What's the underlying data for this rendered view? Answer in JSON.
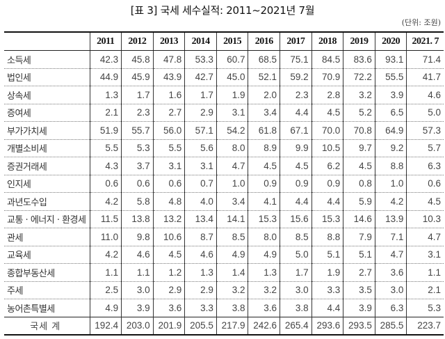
{
  "document": {
    "title": "[표 3] 국세 세수실적: 2011~2021년 7월",
    "unit": "(단위: 조원)"
  },
  "table": {
    "header": {
      "label": "",
      "years": [
        "2011",
        "2012",
        "2013",
        "2014",
        "2015",
        "2016",
        "2017",
        "2018",
        "2019",
        "2020",
        "2021. 7"
      ]
    },
    "rows": [
      {
        "label": "소득세",
        "values": [
          "42.3",
          "45.8",
          "47.8",
          "53.3",
          "60.7",
          "68.5",
          "75.1",
          "84.5",
          "83.6",
          "93.1",
          "71.4"
        ]
      },
      {
        "label": "법인세",
        "values": [
          "44.9",
          "45.9",
          "43.9",
          "42.7",
          "45.0",
          "52.1",
          "59.2",
          "70.9",
          "72.2",
          "55.5",
          "41.7"
        ]
      },
      {
        "label": "상속세",
        "values": [
          "1.3",
          "1.7",
          "1.6",
          "1.7",
          "1.9",
          "2.0",
          "2.3",
          "2.8",
          "3.2",
          "3.9",
          "4.6"
        ]
      },
      {
        "label": "증여세",
        "values": [
          "2.1",
          "2.3",
          "2.7",
          "2.9",
          "3.1",
          "3.4",
          "4.4",
          "4.5",
          "5.2",
          "6.5",
          "5.0"
        ]
      },
      {
        "label": "부가가치세",
        "values": [
          "51.9",
          "55.7",
          "56.0",
          "57.1",
          "54.2",
          "61.8",
          "67.1",
          "70.0",
          "70.8",
          "64.9",
          "57.3"
        ]
      },
      {
        "label": "개별소비세",
        "values": [
          "5.5",
          "5.3",
          "5.5",
          "5.6",
          "8.0",
          "8.9",
          "9.9",
          "10.5",
          "9.7",
          "9.2",
          "5.7"
        ]
      },
      {
        "label": "증권거래세",
        "values": [
          "4.3",
          "3.7",
          "3.1",
          "3.1",
          "4.7",
          "4.5",
          "4.5",
          "6.2",
          "4.5",
          "8.8",
          "6.3"
        ]
      },
      {
        "label": "인지세",
        "values": [
          "0.6",
          "0.6",
          "0.6",
          "0.7",
          "1.0",
          "0.9",
          "0.9",
          "0.9",
          "0.8",
          "1.0",
          "0.6"
        ]
      },
      {
        "label": "과년도수입",
        "values": [
          "4.2",
          "5.8",
          "4.8",
          "4.0",
          "3.4",
          "4.1",
          "4.4",
          "4.4",
          "5.9",
          "4.2",
          "4.5"
        ]
      },
      {
        "label": "교통 · 에너지 · 환경세",
        "values": [
          "11.5",
          "13.8",
          "13.2",
          "13.4",
          "14.1",
          "15.3",
          "15.6",
          "15.3",
          "14.6",
          "13.9",
          "10.3"
        ]
      },
      {
        "label": "관세",
        "values": [
          "11.0",
          "9.8",
          "10.6",
          "8.7",
          "8.5",
          "8.0",
          "8.5",
          "8.8",
          "7.9",
          "7.1",
          "4.7"
        ]
      },
      {
        "label": "교육세",
        "values": [
          "4.2",
          "4.6",
          "4.5",
          "4.6",
          "4.9",
          "4.9",
          "5.0",
          "5.1",
          "5.1",
          "4.7",
          "3.1"
        ]
      },
      {
        "label": "종합부동산세",
        "values": [
          "1.1",
          "1.1",
          "1.2",
          "1.3",
          "1.4",
          "1.3",
          "1.7",
          "1.9",
          "2.7",
          "3.6",
          "1.1"
        ]
      },
      {
        "label": "주세",
        "values": [
          "2.5",
          "3.0",
          "2.9",
          "2.9",
          "3.2",
          "3.2",
          "3.0",
          "3.3",
          "3.5",
          "3.0",
          "2.1"
        ]
      },
      {
        "label": "농어촌특별세",
        "values": [
          "4.9",
          "3.9",
          "3.6",
          "3.3",
          "3.8",
          "3.6",
          "3.8",
          "4.4",
          "3.9",
          "6.3",
          "5.3"
        ]
      }
    ],
    "total": {
      "label": "국세 계",
      "values": [
        "192.4",
        "203.0",
        "201.9",
        "205.5",
        "217.9",
        "242.6",
        "265.4",
        "293.6",
        "293.5",
        "285.5",
        "223.7"
      ]
    }
  }
}
